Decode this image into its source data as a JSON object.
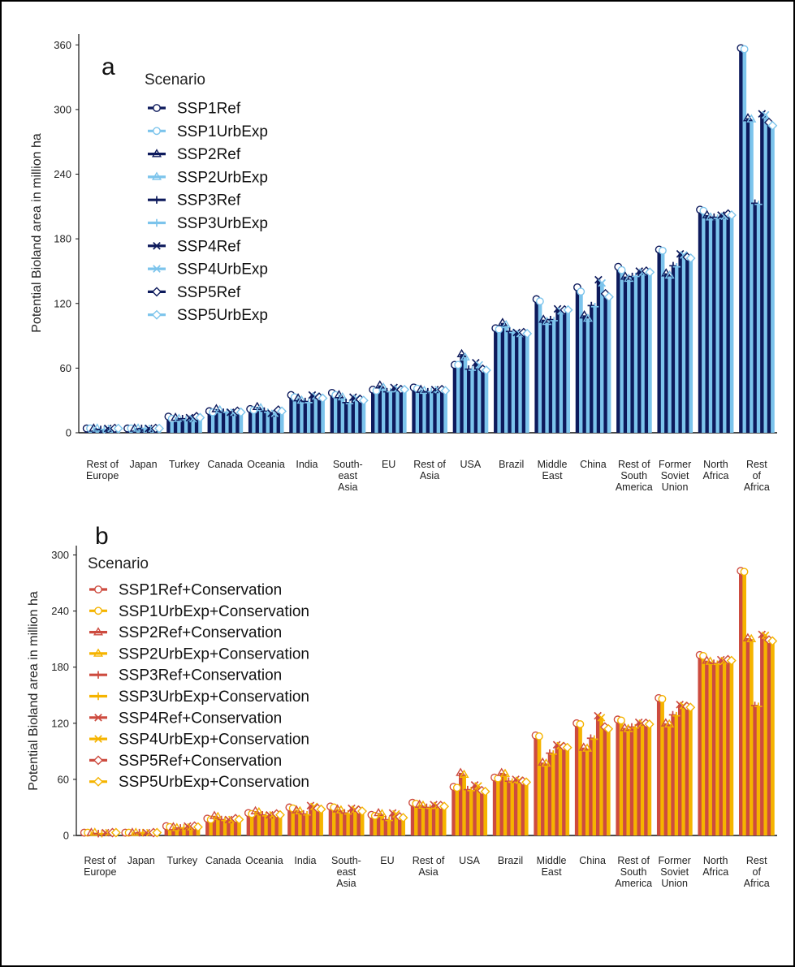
{
  "chart_data": [
    {
      "panel_label": "a",
      "type": "bar",
      "ylabel": "Potential Bioland area in million ha",
      "ylim": [
        0,
        370
      ],
      "yticks": [
        0,
        60,
        120,
        180,
        240,
        300,
        360
      ],
      "legend_title": "Scenario",
      "legend_placement": "top-left",
      "colors": {
        "Ref": "#0d1a5c",
        "UrbExp": "#7cc4ec"
      },
      "categories": [
        "Rest of Europe",
        "Japan",
        "Turkey",
        "Canada",
        "Oceania",
        "India",
        "South-east Asia",
        "EU",
        "Rest of Asia",
        "USA",
        "Brazil",
        "Middle East",
        "China",
        "Rest of South America",
        "Former Soviet Union",
        "North Africa",
        "Rest of Africa"
      ],
      "category_labels": [
        [
          "Rest of",
          "Europe"
        ],
        [
          "Japan"
        ],
        [
          "Turkey"
        ],
        [
          "Canada"
        ],
        [
          "Oceania"
        ],
        [
          "India"
        ],
        [
          "South-",
          "east",
          "Asia"
        ],
        [
          "EU"
        ],
        [
          "Rest of",
          "Asia"
        ],
        [
          "USA"
        ],
        [
          "Brazil"
        ],
        [
          "Middle",
          "East"
        ],
        [
          "China"
        ],
        [
          "Rest of",
          "South",
          "America"
        ],
        [
          "Former",
          "Soviet",
          "Union"
        ],
        [
          "North",
          "Africa"
        ],
        [
          "Rest",
          "of",
          "Africa"
        ]
      ],
      "series": [
        {
          "name": "SSP1Ref",
          "marker": "circle",
          "values": [
            4,
            4,
            15,
            20,
            22,
            35,
            37,
            40,
            42,
            63,
            97,
            124,
            135,
            154,
            170,
            207,
            357
          ]
        },
        {
          "name": "SSP1UrbExp",
          "marker": "circle",
          "values": [
            4,
            4,
            13,
            19,
            21,
            33,
            35,
            39,
            41,
            63,
            96,
            122,
            131,
            151,
            169,
            206,
            356
          ]
        },
        {
          "name": "SSP2Ref",
          "marker": "triangle",
          "values": [
            4,
            4,
            14,
            22,
            24,
            32,
            35,
            44,
            40,
            73,
            102,
            105,
            109,
            145,
            148,
            202,
            292
          ]
        },
        {
          "name": "SSP2UrbExp",
          "marker": "triangle",
          "values": [
            4,
            4,
            13,
            21,
            23,
            30,
            33,
            42,
            39,
            70,
            100,
            103,
            106,
            143,
            146,
            200,
            291
          ]
        },
        {
          "name": "SSP3Ref",
          "marker": "plus",
          "values": [
            3,
            4,
            13,
            19,
            20,
            29,
            28,
            38,
            38,
            59,
            94,
            105,
            118,
            145,
            155,
            200,
            213
          ]
        },
        {
          "name": "SSP3UrbExp",
          "marker": "plus",
          "values": [
            3,
            4,
            12,
            19,
            19,
            28,
            27,
            38,
            38,
            58,
            93,
            104,
            117,
            145,
            154,
            199,
            212
          ]
        },
        {
          "name": "SSP4Ref",
          "marker": "cross",
          "values": [
            4,
            4,
            14,
            19,
            18,
            35,
            33,
            42,
            40,
            65,
            93,
            115,
            142,
            150,
            166,
            202,
            296
          ]
        },
        {
          "name": "SSP4UrbExp",
          "marker": "cross",
          "values": [
            4,
            4,
            13,
            19,
            18,
            34,
            32,
            41,
            40,
            63,
            92,
            113,
            139,
            149,
            165,
            201,
            295
          ]
        },
        {
          "name": "SSP5Ref",
          "marker": "diamond",
          "values": [
            4,
            4,
            15,
            20,
            21,
            33,
            31,
            40,
            40,
            59,
            93,
            114,
            129,
            150,
            163,
            203,
            288
          ]
        },
        {
          "name": "SSP5UrbExp",
          "marker": "diamond",
          "values": [
            4,
            4,
            14,
            19,
            20,
            32,
            30,
            40,
            39,
            58,
            92,
            114,
            126,
            149,
            162,
            202,
            285
          ]
        }
      ]
    },
    {
      "panel_label": "b",
      "type": "bar",
      "ylabel": "Potential Bioland area in million ha",
      "ylim": [
        0,
        310
      ],
      "yticks": [
        0,
        60,
        120,
        180,
        240,
        300
      ],
      "legend_title": "Scenario",
      "legend_placement": "top-left",
      "colors": {
        "Ref": "#cd4b3f",
        "UrbExp": "#f5b400"
      },
      "categories": [
        "Rest of Europe",
        "Japan",
        "Turkey",
        "Canada",
        "Oceania",
        "India",
        "South-east Asia",
        "EU",
        "Rest of Asia",
        "USA",
        "Brazil",
        "Middle East",
        "China",
        "Rest of South America",
        "Former Soviet Union",
        "North Africa",
        "Rest of Africa"
      ],
      "category_labels": [
        [
          "Rest of",
          "Europe"
        ],
        [
          "Japan"
        ],
        [
          "Turkey"
        ],
        [
          "Canada"
        ],
        [
          "Oceania"
        ],
        [
          "India"
        ],
        [
          "South-",
          "east",
          "Asia"
        ],
        [
          "EU"
        ],
        [
          "Rest of",
          "Asia"
        ],
        [
          "USA"
        ],
        [
          "Brazil"
        ],
        [
          "Middle",
          "East"
        ],
        [
          "China"
        ],
        [
          "Rest of",
          "South",
          "America"
        ],
        [
          "Former",
          "Soviet",
          "Union"
        ],
        [
          "North",
          "Africa"
        ],
        [
          "Rest",
          "of",
          "Africa"
        ]
      ],
      "series": [
        {
          "name": "SSP1Ref+Conservation",
          "marker": "circle",
          "values": [
            3,
            3,
            10,
            18,
            24,
            30,
            31,
            22,
            35,
            52,
            62,
            107,
            120,
            124,
            147,
            193,
            283
          ]
        },
        {
          "name": "SSP1UrbExp+Conservation",
          "marker": "circle",
          "values": [
            3,
            3,
            9,
            17,
            23,
            29,
            30,
            21,
            34,
            51,
            61,
            106,
            119,
            123,
            146,
            192,
            282
          ]
        },
        {
          "name": "SSP2Ref+Conservation",
          "marker": "triangle",
          "values": [
            3,
            3,
            9,
            21,
            26,
            27,
            28,
            24,
            33,
            67,
            67,
            78,
            94,
            115,
            120,
            187,
            211
          ]
        },
        {
          "name": "SSP2UrbExp+Conservation",
          "marker": "triangle",
          "values": [
            3,
            3,
            8,
            20,
            25,
            26,
            27,
            23,
            32,
            65,
            66,
            77,
            93,
            114,
            119,
            186,
            210
          ]
        },
        {
          "name": "SSP3Ref+Conservation",
          "marker": "plus",
          "values": [
            2,
            3,
            8,
            17,
            22,
            23,
            24,
            17,
            30,
            49,
            58,
            88,
            104,
            116,
            129,
            184,
            139
          ]
        },
        {
          "name": "SSP3UrbExp+Conservation",
          "marker": "plus",
          "values": [
            2,
            3,
            8,
            16,
            21,
            22,
            23,
            16,
            29,
            48,
            57,
            87,
            103,
            115,
            128,
            183,
            138
          ]
        },
        {
          "name": "SSP4Ref+Conservation",
          "marker": "cross",
          "values": [
            3,
            3,
            10,
            17,
            22,
            32,
            29,
            24,
            33,
            54,
            60,
            97,
            128,
            121,
            140,
            188,
            215
          ]
        },
        {
          "name": "SSP4UrbExp+Conservation",
          "marker": "cross",
          "values": [
            3,
            3,
            9,
            17,
            22,
            31,
            28,
            23,
            32,
            53,
            59,
            96,
            126,
            120,
            139,
            187,
            214
          ]
        },
        {
          "name": "SSP5Ref+Conservation",
          "marker": "diamond",
          "values": [
            3,
            3,
            10,
            18,
            23,
            29,
            27,
            20,
            32,
            48,
            58,
            95,
            116,
            120,
            138,
            188,
            209
          ]
        },
        {
          "name": "SSP5UrbExp+Conservation",
          "marker": "diamond",
          "values": [
            3,
            3,
            9,
            17,
            22,
            28,
            26,
            19,
            31,
            47,
            57,
            94,
            114,
            119,
            137,
            187,
            208
          ]
        }
      ]
    }
  ]
}
